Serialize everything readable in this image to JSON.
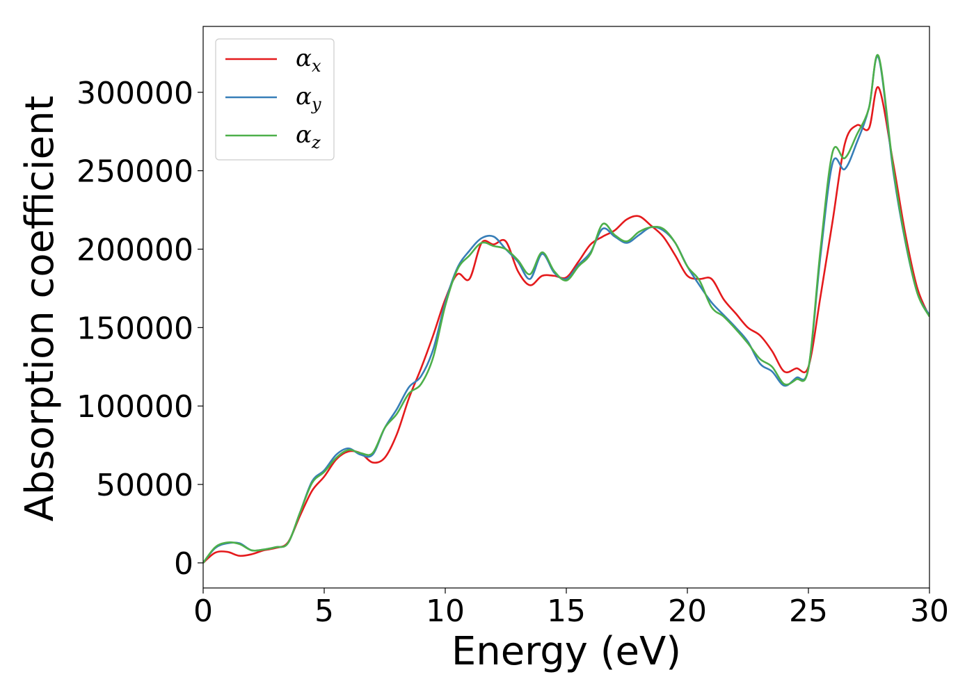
{
  "chart_data": {
    "type": "line",
    "xlabel": "Energy (eV)",
    "ylabel": "Absorption coefficient",
    "xlim": [
      0,
      30
    ],
    "ylim": [
      -16000,
      342000
    ],
    "xticks": [
      0,
      5,
      10,
      15,
      20,
      25,
      30
    ],
    "yticks": [
      0,
      50000,
      100000,
      150000,
      200000,
      250000,
      300000
    ],
    "xtick_labels": [
      "0",
      "5",
      "10",
      "15",
      "20",
      "25",
      "30"
    ],
    "ytick_labels": [
      "0",
      "50000",
      "100000",
      "150000",
      "200000",
      "250000",
      "300000"
    ],
    "grid": false,
    "legend_position": "top-left",
    "x": [
      0,
      0.5,
      1,
      1.5,
      2,
      2.5,
      3,
      3.5,
      4,
      4.5,
      5,
      5.5,
      6,
      6.5,
      7,
      7.5,
      8,
      8.5,
      9,
      9.5,
      10,
      10.5,
      11,
      11.5,
      12,
      12.5,
      13,
      13.5,
      14,
      14.5,
      15,
      15.5,
      16,
      16.5,
      17,
      17.5,
      18,
      18.5,
      19,
      19.5,
      20,
      20.5,
      21,
      21.5,
      22,
      22.5,
      23,
      23.5,
      24,
      24.5,
      25,
      25.5,
      26,
      26.5,
      27,
      27.5,
      27.9,
      28.5,
      29,
      29.5,
      30
    ],
    "series": [
      {
        "name": "x",
        "color": "#e41a1c",
        "values": [
          0,
          6500,
          7000,
          4500,
          5500,
          8000,
          9500,
          13000,
          30000,
          46000,
          55000,
          66000,
          71000,
          70000,
          64000,
          67000,
          82000,
          105000,
          124000,
          145000,
          168000,
          184000,
          181000,
          204000,
          203000,
          205000,
          186000,
          177000,
          183000,
          183000,
          182000,
          192000,
          203000,
          208000,
          212000,
          219000,
          221000,
          215000,
          208000,
          196000,
          183000,
          181000,
          181000,
          168000,
          159000,
          150000,
          145000,
          135000,
          122000,
          124000,
          125000,
          170000,
          218000,
          267000,
          279000,
          277000,
          303000,
          255000,
          210000,
          175000,
          157000
        ]
      },
      {
        "name": "y",
        "color": "#377eb8",
        "values": [
          0,
          9500,
          12500,
          12500,
          8000,
          8500,
          10000,
          12500,
          32000,
          52000,
          59000,
          69000,
          73000,
          69000,
          69000,
          86000,
          98000,
          112000,
          119000,
          136000,
          166000,
          188000,
          199000,
          207000,
          208000,
          200000,
          192000,
          181000,
          197000,
          185000,
          181000,
          190000,
          198000,
          213000,
          208000,
          204000,
          209000,
          214000,
          212000,
          204000,
          189000,
          177000,
          166000,
          158000,
          150000,
          141000,
          127000,
          122000,
          113000,
          118000,
          124000,
          196000,
          255000,
          251000,
          268000,
          290000,
          322000,
          250000,
          205000,
          172000,
          158000
        ]
      },
      {
        "name": "z",
        "color": "#4daf4a",
        "values": [
          0,
          10000,
          13000,
          12000,
          8000,
          8500,
          10000,
          12500,
          32000,
          51000,
          58000,
          67000,
          72000,
          70000,
          70000,
          86000,
          95000,
          108000,
          114000,
          131000,
          164000,
          187000,
          196000,
          204000,
          202000,
          200000,
          193000,
          184000,
          198000,
          186000,
          180000,
          189000,
          197000,
          216000,
          209000,
          205000,
          211000,
          214000,
          213000,
          204000,
          189000,
          180000,
          163000,
          157000,
          149000,
          140000,
          130000,
          125000,
          114000,
          117000,
          124000,
          200000,
          262000,
          258000,
          273000,
          290000,
          323000,
          252000,
          206000,
          172000,
          157000
        ]
      }
    ]
  },
  "legend": {
    "items": [
      {
        "symbol": "α",
        "subscript": "x"
      },
      {
        "symbol": "α",
        "subscript": "y"
      },
      {
        "symbol": "α",
        "subscript": "z"
      }
    ]
  }
}
